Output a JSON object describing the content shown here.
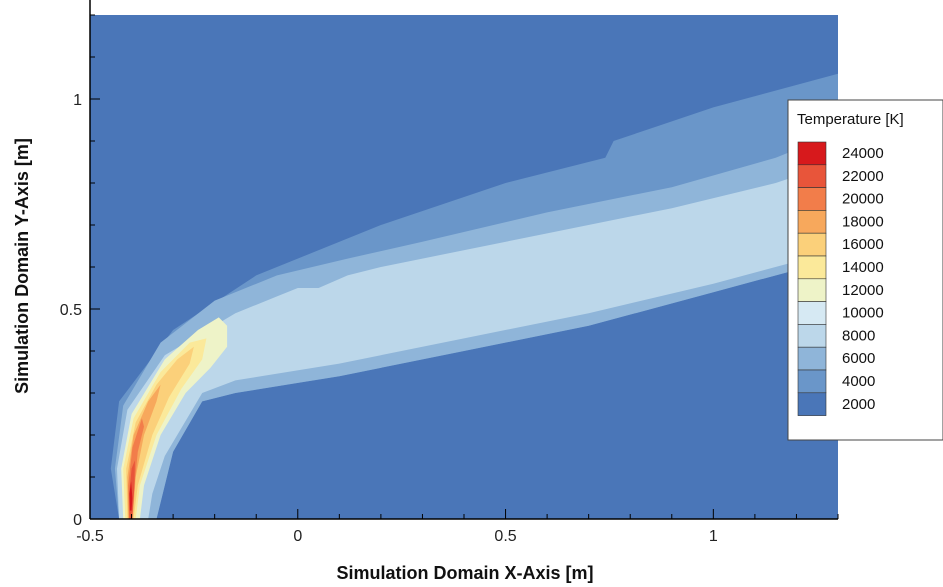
{
  "chart_data": {
    "type": "heatmap",
    "title": "",
    "xlabel": "Simulation Domain X-Axis [m]",
    "ylabel": "Simulation Domain Y-Axis [m]",
    "xlim": [
      -0.5,
      1.3
    ],
    "ylim": [
      0,
      1.2
    ],
    "x_ticks": [
      {
        "value": -0.5,
        "label": "-0.5"
      },
      {
        "value": 0,
        "label": "0"
      },
      {
        "value": 0.5,
        "label": "0.5"
      },
      {
        "value": 1,
        "label": "1"
      }
    ],
    "y_ticks": [
      {
        "value": 0,
        "label": "0"
      },
      {
        "value": 0.5,
        "label": "0.5"
      },
      {
        "value": 1,
        "label": "1"
      }
    ],
    "legend": {
      "title": "Temperature [K]",
      "placement": "right",
      "levels": [
        {
          "value": 24000,
          "label": "24000",
          "color": "#d7191c"
        },
        {
          "value": 22000,
          "label": "22000",
          "color": "#e8553a"
        },
        {
          "value": 20000,
          "label": "20000",
          "color": "#f27d4a"
        },
        {
          "value": 18000,
          "label": "18000",
          "color": "#f7a85c"
        },
        {
          "value": 16000,
          "label": "16000",
          "color": "#fbd07a"
        },
        {
          "value": 14000,
          "label": "14000",
          "color": "#fbe99a"
        },
        {
          "value": 12000,
          "label": "12000",
          "color": "#eef3c8"
        },
        {
          "value": 10000,
          "label": "10000",
          "color": "#d6e9f3"
        },
        {
          "value": 8000,
          "label": "8000",
          "color": "#bcd7ea"
        },
        {
          "value": 6000,
          "label": "6000",
          "color": "#8fb5d9"
        },
        {
          "value": 4000,
          "label": "4000",
          "color": "#6a96c9"
        },
        {
          "value": 2000,
          "label": "2000",
          "color": "#4a76b8"
        }
      ]
    },
    "background_color": "#4a76b8",
    "regions": [
      {
        "level": 4000,
        "points": [
          [
            -0.43,
            0
          ],
          [
            -0.45,
            0.12
          ],
          [
            -0.43,
            0.28
          ],
          [
            -0.3,
            0.45
          ],
          [
            -0.1,
            0.58
          ],
          [
            0.2,
            0.7
          ],
          [
            0.5,
            0.8
          ],
          [
            0.74,
            0.86
          ],
          [
            0.76,
            0.9
          ],
          [
            1.0,
            0.98
          ],
          [
            1.3,
            1.06
          ],
          [
            1.3,
            0.62
          ],
          [
            1.0,
            0.54
          ],
          [
            0.7,
            0.46
          ],
          [
            0.4,
            0.4
          ],
          [
            0.1,
            0.34
          ],
          [
            -0.15,
            0.3
          ],
          [
            -0.23,
            0.28
          ],
          [
            -0.3,
            0.16
          ],
          [
            -0.32,
            0.08
          ],
          [
            -0.34,
            0
          ]
        ]
      },
      {
        "level": 6000,
        "points": [
          [
            -0.43,
            0
          ],
          [
            -0.44,
            0.12
          ],
          [
            -0.42,
            0.27
          ],
          [
            -0.33,
            0.42
          ],
          [
            -0.2,
            0.52
          ],
          [
            -0.05,
            0.58
          ],
          [
            0.12,
            0.62
          ],
          [
            0.3,
            0.66
          ],
          [
            0.6,
            0.73
          ],
          [
            0.9,
            0.79
          ],
          [
            1.15,
            0.86
          ],
          [
            1.3,
            0.92
          ],
          [
            1.3,
            0.62
          ],
          [
            1.0,
            0.54
          ],
          [
            0.7,
            0.46
          ],
          [
            0.4,
            0.4
          ],
          [
            0.1,
            0.34
          ],
          [
            -0.15,
            0.3
          ],
          [
            -0.23,
            0.28
          ],
          [
            -0.3,
            0.16
          ],
          [
            -0.32,
            0.08
          ],
          [
            -0.34,
            0
          ]
        ]
      },
      {
        "level": 8000,
        "points": [
          [
            -0.43,
            0
          ],
          [
            -0.435,
            0.12
          ],
          [
            -0.41,
            0.26
          ],
          [
            -0.32,
            0.39
          ],
          [
            -0.15,
            0.49
          ],
          [
            -0.05,
            0.53
          ],
          [
            0.0,
            0.55
          ],
          [
            0.05,
            0.55
          ],
          [
            0.12,
            0.58
          ],
          [
            0.2,
            0.6
          ],
          [
            0.3,
            0.62
          ],
          [
            0.6,
            0.68
          ],
          [
            0.9,
            0.74
          ],
          [
            1.15,
            0.8
          ],
          [
            1.3,
            0.85
          ],
          [
            1.3,
            0.64
          ],
          [
            1.0,
            0.56
          ],
          [
            0.7,
            0.49
          ],
          [
            0.4,
            0.43
          ],
          [
            0.1,
            0.37
          ],
          [
            -0.15,
            0.33
          ],
          [
            -0.23,
            0.3
          ],
          [
            -0.32,
            0.15
          ],
          [
            -0.35,
            0.06
          ],
          [
            -0.36,
            0
          ]
        ]
      },
      {
        "level": 12000,
        "points": [
          [
            -0.42,
            0
          ],
          [
            -0.425,
            0.12
          ],
          [
            -0.4,
            0.25
          ],
          [
            -0.32,
            0.38
          ],
          [
            -0.24,
            0.45
          ],
          [
            -0.19,
            0.48
          ],
          [
            -0.17,
            0.46
          ],
          [
            -0.17,
            0.41
          ],
          [
            -0.21,
            0.36
          ],
          [
            -0.27,
            0.3
          ],
          [
            -0.33,
            0.2
          ],
          [
            -0.37,
            0.08
          ],
          [
            -0.38,
            0
          ]
        ]
      },
      {
        "level": 14000,
        "points": [
          [
            -0.415,
            0
          ],
          [
            -0.42,
            0.12
          ],
          [
            -0.395,
            0.24
          ],
          [
            -0.33,
            0.35
          ],
          [
            -0.26,
            0.42
          ],
          [
            -0.22,
            0.43
          ],
          [
            -0.23,
            0.38
          ],
          [
            -0.28,
            0.31
          ],
          [
            -0.34,
            0.2
          ],
          [
            -0.38,
            0.08
          ],
          [
            -0.39,
            0
          ]
        ]
      },
      {
        "level": 16000,
        "points": [
          [
            -0.41,
            0
          ],
          [
            -0.413,
            0.12
          ],
          [
            -0.39,
            0.23
          ],
          [
            -0.34,
            0.32
          ],
          [
            -0.29,
            0.38
          ],
          [
            -0.25,
            0.41
          ],
          [
            -0.26,
            0.37
          ],
          [
            -0.31,
            0.29
          ],
          [
            -0.35,
            0.2
          ],
          [
            -0.385,
            0.08
          ],
          [
            -0.395,
            0
          ]
        ]
      },
      {
        "level": 18000,
        "points": [
          [
            -0.408,
            0
          ],
          [
            -0.41,
            0.1
          ],
          [
            -0.395,
            0.2
          ],
          [
            -0.36,
            0.28
          ],
          [
            -0.33,
            0.32
          ],
          [
            -0.34,
            0.28
          ],
          [
            -0.37,
            0.2
          ],
          [
            -0.39,
            0.1
          ],
          [
            -0.397,
            0
          ]
        ]
      },
      {
        "level": 20000,
        "points": [
          [
            -0.406,
            0
          ],
          [
            -0.408,
            0.08
          ],
          [
            -0.398,
            0.17
          ],
          [
            -0.375,
            0.24
          ],
          [
            -0.37,
            0.22
          ],
          [
            -0.385,
            0.16
          ],
          [
            -0.393,
            0.08
          ],
          [
            -0.398,
            0
          ]
        ]
      },
      {
        "level": 22000,
        "points": [
          [
            -0.405,
            0
          ],
          [
            -0.406,
            0.06
          ],
          [
            -0.4,
            0.12
          ],
          [
            -0.392,
            0.14
          ],
          [
            -0.393,
            0.08
          ],
          [
            -0.399,
            0
          ]
        ]
      },
      {
        "level": 24000,
        "points": [
          [
            -0.404,
            0.02
          ],
          [
            -0.405,
            0.06
          ],
          [
            -0.401,
            0.09
          ],
          [
            -0.398,
            0.05
          ],
          [
            -0.4,
            0.02
          ]
        ]
      }
    ]
  }
}
